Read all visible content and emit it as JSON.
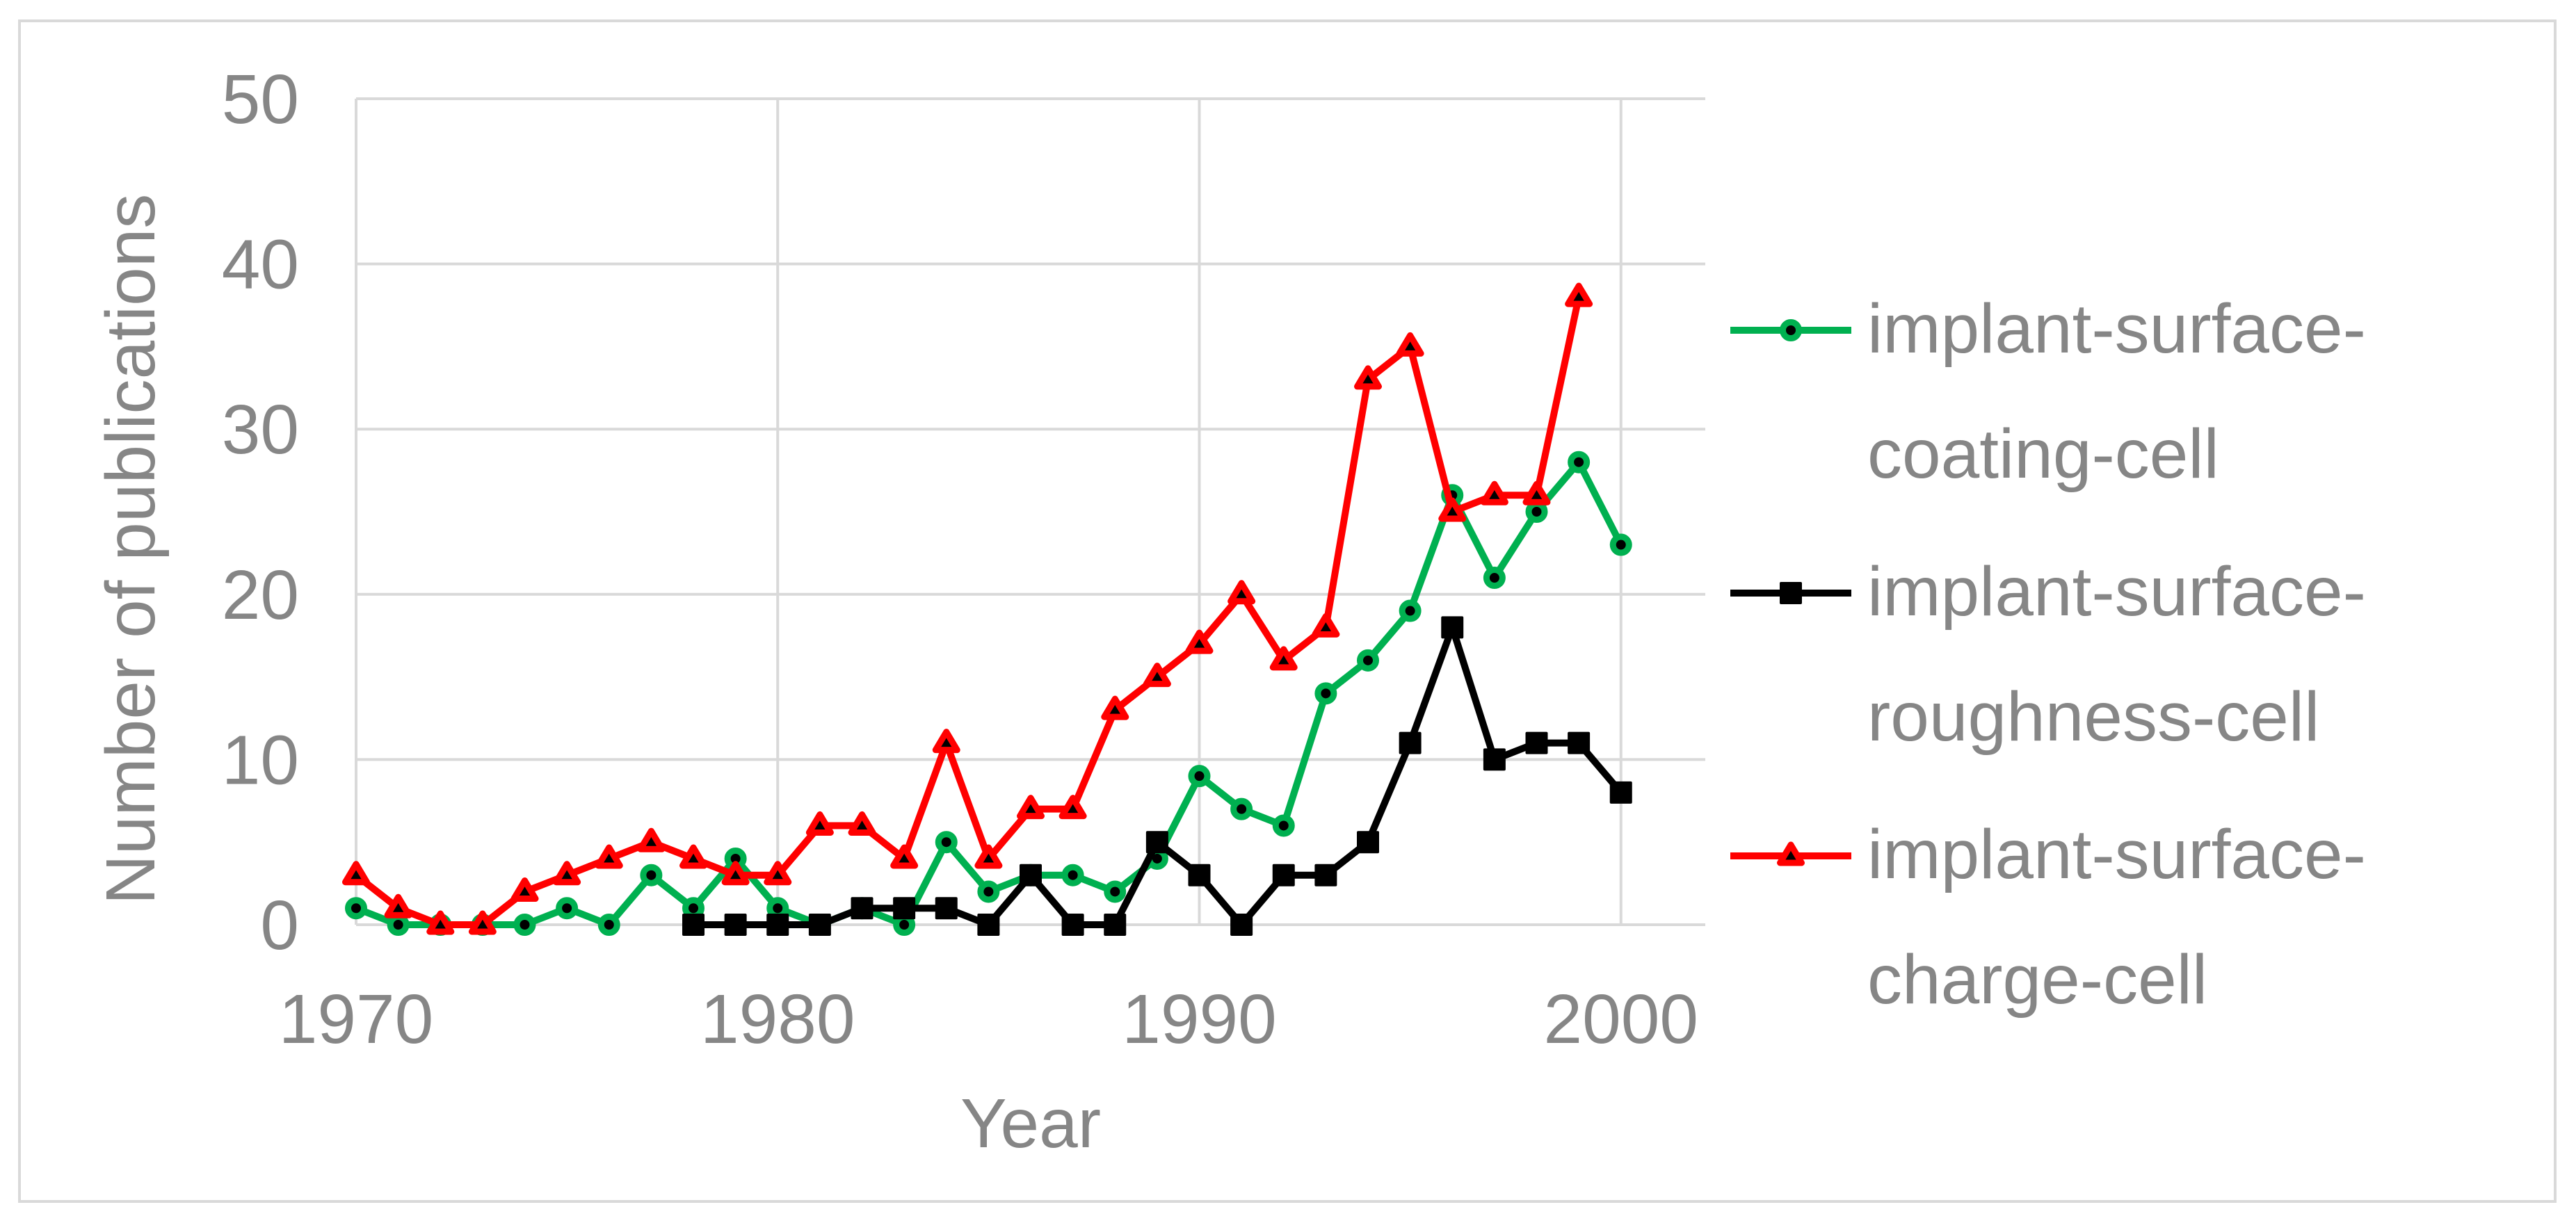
{
  "colors": {
    "background": "#FFFFFF",
    "figure_border": "#D9D9D9",
    "grid": "#D9D9D9",
    "text": "#868686",
    "series_green": "#00B050",
    "series_black": "#000000",
    "series_red": "#FF0000"
  },
  "chart_data": {
    "type": "line",
    "title": "",
    "xlabel": "Year",
    "ylabel": "Number of publications",
    "xlim": [
      1970,
      2002
    ],
    "ylim": [
      0,
      50
    ],
    "x_ticks": [
      1970,
      1980,
      1990,
      2000
    ],
    "y_ticks": [
      0,
      10,
      20,
      30,
      40,
      50
    ],
    "grid": true,
    "legend_position": "right",
    "series": [
      {
        "name": "implant-surface-coating-cell",
        "color": "#00B050",
        "marker": "circle",
        "years": [
          1970,
          1971,
          1972,
          1973,
          1974,
          1975,
          1976,
          1977,
          1978,
          1979,
          1980,
          1981,
          1982,
          1983,
          1984,
          1985,
          1986,
          1987,
          1988,
          1989,
          1990,
          1991,
          1992,
          1993,
          1994,
          1995,
          1996,
          1997,
          1998,
          1999,
          2000
        ],
        "values": [
          1,
          0,
          0,
          0,
          0,
          1,
          0,
          3,
          1,
          4,
          1,
          0,
          1,
          0,
          5,
          2,
          3,
          3,
          2,
          4,
          9,
          7,
          6,
          14,
          16,
          19,
          26,
          21,
          25,
          28,
          23
        ]
      },
      {
        "name": "implant-surface-roughness-cell",
        "color": "#000000",
        "marker": "square",
        "years": [
          1978,
          1979,
          1980,
          1981,
          1982,
          1983,
          1984,
          1985,
          1986,
          1987,
          1988,
          1989,
          1990,
          1991,
          1992,
          1993,
          1994,
          1995,
          1996,
          1997,
          1998,
          1999,
          2000
        ],
        "values": [
          0,
          0,
          0,
          0,
          1,
          1,
          1,
          0,
          3,
          0,
          0,
          5,
          3,
          0,
          3,
          3,
          5,
          11,
          18,
          10,
          11,
          11,
          8
        ]
      },
      {
        "name": "implant-surface-charge-cell",
        "color": "#FF0000",
        "marker": "triangle",
        "years": [
          1970,
          1971,
          1972,
          1973,
          1974,
          1975,
          1976,
          1977,
          1978,
          1979,
          1980,
          1981,
          1982,
          1983,
          1984,
          1985,
          1986,
          1987,
          1988,
          1989,
          1990,
          1991,
          1992,
          1993,
          1994,
          1995,
          1996,
          1997,
          1998,
          1999
        ],
        "values": [
          3,
          1,
          0,
          0,
          2,
          3,
          4,
          5,
          4,
          3,
          3,
          6,
          6,
          4,
          11,
          4,
          7,
          7,
          13,
          15,
          17,
          20,
          16,
          18,
          33,
          35,
          25,
          26,
          26,
          38
        ]
      }
    ]
  },
  "legend": {
    "items": [
      {
        "line1": "implant-surface-",
        "line2": "coating-cell"
      },
      {
        "line1": "implant-surface-",
        "line2": "roughness-cell"
      },
      {
        "line1": "implant-surface-",
        "line2": "charge-cell"
      }
    ]
  }
}
